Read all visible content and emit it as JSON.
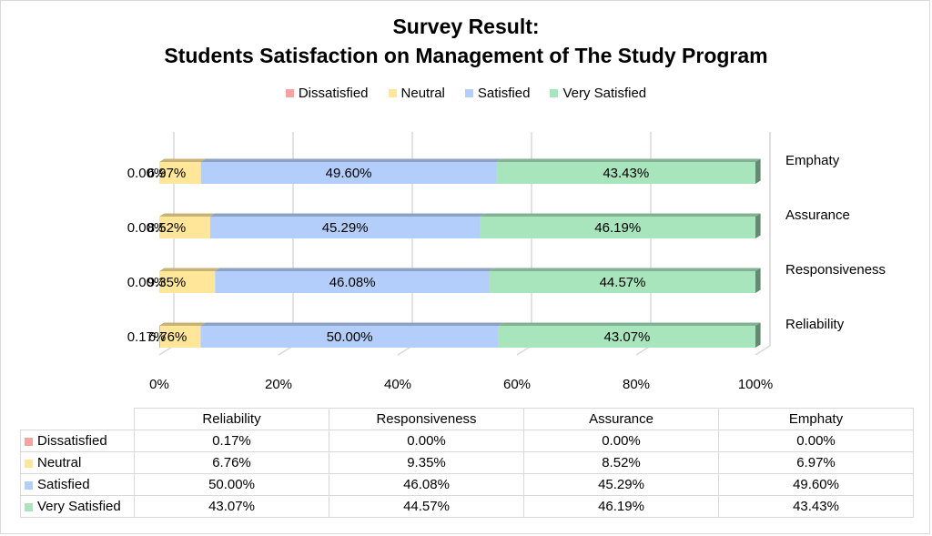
{
  "chart_data": {
    "type": "bar",
    "orientation": "horizontal",
    "stacking": "percent",
    "title_line1": "Survey Result:",
    "title_line2": "Students Satisfaction on Management of The Study Program",
    "categories": [
      "Reliability",
      "Responsiveness",
      "Assurance",
      "Emphaty"
    ],
    "series": [
      {
        "name": "Dissatisfied",
        "color": "#f4a3a0",
        "values": [
          0.17,
          0.0,
          0.0,
          0.0
        ],
        "labels": [
          "0.17%",
          "0.00%",
          "0.00%",
          "0.00%"
        ]
      },
      {
        "name": "Neutral",
        "color": "#ffe699",
        "values": [
          6.76,
          9.35,
          8.52,
          6.97
        ],
        "labels": [
          "6.76%",
          "9.35%",
          "8.52%",
          "6.97%"
        ]
      },
      {
        "name": "Satisfied",
        "color": "#b4cefb",
        "values": [
          50.0,
          46.08,
          45.29,
          49.6
        ],
        "labels": [
          "50.00%",
          "46.08%",
          "45.29%",
          "49.60%"
        ]
      },
      {
        "name": "Very Satisfied",
        "color": "#a8e4bc",
        "values": [
          43.07,
          44.57,
          46.19,
          43.43
        ],
        "labels": [
          "43.07%",
          "44.57%",
          "46.19%",
          "43.43%"
        ]
      }
    ],
    "x_ticks": [
      "0%",
      "20%",
      "40%",
      "60%",
      "80%",
      "100%"
    ],
    "xlim": [
      0,
      100
    ],
    "legend_position": "top",
    "grid": true,
    "data_table": true
  }
}
